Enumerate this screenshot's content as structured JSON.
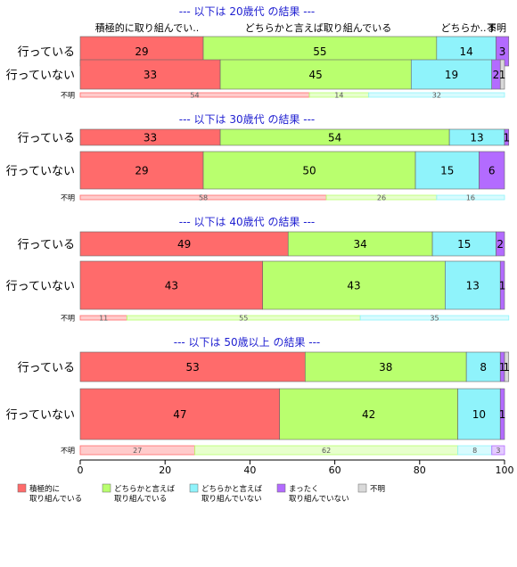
{
  "chart_data": {
    "type": "bar",
    "orientation": "horizontal",
    "stacked": true,
    "xlim": [
      0,
      100
    ],
    "x_ticks": [
      "0",
      "20",
      "40",
      "60",
      "80",
      "100"
    ],
    "series": [
      {
        "name": "積極的に取り組んでいる",
        "color": "#ff6b6b"
      },
      {
        "name": "どちらかと言えば取り組んでいる",
        "color": "#b9ff6e"
      },
      {
        "name": "どちらかと言えば取り組んでいない",
        "color": "#8ff3fb"
      },
      {
        "name": "まったく取り組んでいない",
        "color": "#b36bff"
      },
      {
        "name": "不明",
        "color": "#d9d9d9"
      }
    ],
    "legend": {
      "position": "bottom",
      "entries": [
        {
          "line1": "積極的に",
          "line2": "取り組んでいる",
          "color": "#ff6b6b"
        },
        {
          "line1": "どちらかと言えば",
          "line2": "取り組んでいる",
          "color": "#b9ff6e"
        },
        {
          "line1": "どちらかと言えば",
          "line2": "取り組んでいない",
          "color": "#8ff3fb"
        },
        {
          "line1": "まったく",
          "line2": "取り組んでいない",
          "color": "#b36bff"
        },
        {
          "line1": "不明",
          "line2": "",
          "color": "#d9d9d9"
        }
      ]
    },
    "top_column_labels": [
      "積極的に取り組んでい..",
      "どちらかと言えば取り組んでいる",
      "どちらか..",
      "ま",
      "不明"
    ],
    "panels": [
      {
        "title": "--- 以下は 20歳代 の結果 ---",
        "rows": [
          {
            "label": "行っている",
            "values": [
              29,
              55,
              14,
              3,
              0
            ],
            "labels": [
              "29",
              "55",
              "14",
              "3",
              ""
            ]
          },
          {
            "label": "行っていない",
            "values": [
              33,
              45,
              19,
              2,
              1
            ],
            "labels": [
              "33",
              "45",
              "19",
              "2",
              "1"
            ]
          }
        ],
        "unknown": {
          "label": "不明",
          "values": [
            54,
            14,
            32,
            0,
            0
          ],
          "labels": [
            "54",
            "14",
            "32",
            "",
            ""
          ]
        }
      },
      {
        "title": "--- 以下は 30歳代 の結果 ---",
        "rows": [
          {
            "label": "行っている",
            "values": [
              33,
              54,
              13,
              1,
              0
            ],
            "labels": [
              "33",
              "54",
              "13",
              "1",
              ""
            ]
          },
          {
            "label": "行っていない",
            "values": [
              29,
              50,
              15,
              6,
              0
            ],
            "labels": [
              "29",
              "50",
              "15",
              "6",
              ""
            ]
          }
        ],
        "unknown": {
          "label": "不明",
          "values": [
            58,
            26,
            16,
            0,
            0
          ],
          "labels": [
            "58",
            "26",
            "16",
            "",
            ""
          ]
        }
      },
      {
        "title": "--- 以下は 40歳代 の結果 ---",
        "rows": [
          {
            "label": "行っている",
            "values": [
              49,
              34,
              15,
              2,
              0
            ],
            "labels": [
              "49",
              "34",
              "15",
              "2",
              ""
            ]
          },
          {
            "label": "行っていない",
            "values": [
              43,
              43,
              13,
              1,
              0
            ],
            "labels": [
              "43",
              "43",
              "13",
              "1",
              ""
            ]
          }
        ],
        "unknown": {
          "label": "不明",
          "values": [
            11,
            55,
            35,
            0,
            0
          ],
          "labels": [
            "11",
            "55",
            "35",
            "",
            ""
          ]
        }
      },
      {
        "title": "--- 以下は 50歳以上 の結果 ---",
        "rows": [
          {
            "label": "行っている",
            "values": [
              53,
              38,
              8,
              1,
              1
            ],
            "labels": [
              "53",
              "38",
              "8",
              "1",
              "1"
            ]
          },
          {
            "label": "行っていない",
            "values": [
              47,
              42,
              10,
              1,
              0
            ],
            "labels": [
              "47",
              "42",
              "10",
              "1",
              ""
            ]
          }
        ],
        "unknown": {
          "label": "不明",
          "values": [
            27,
            62,
            8,
            3,
            0
          ],
          "labels": [
            "27",
            "62",
            "8",
            "3",
            ""
          ]
        }
      }
    ]
  }
}
